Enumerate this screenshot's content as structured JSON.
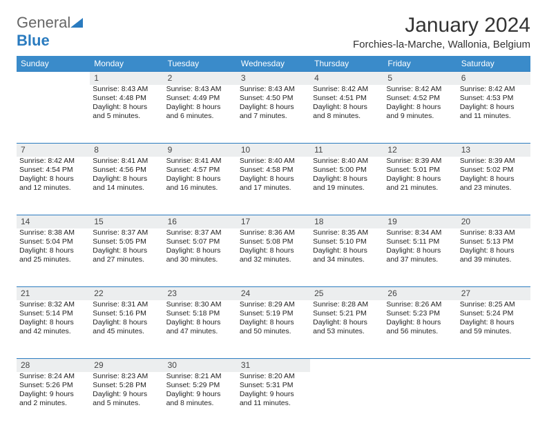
{
  "logo": {
    "line1": "General",
    "line2": "Blue"
  },
  "title": "January 2024",
  "location": "Forchies-la-Marche, Wallonia, Belgium",
  "colors": {
    "header_bg": "#3a8bca",
    "header_text": "#ffffff",
    "daynum_bg": "#eceeef",
    "border": "#2a7bbf",
    "text": "#222222"
  },
  "weekdays": [
    "Sunday",
    "Monday",
    "Tuesday",
    "Wednesday",
    "Thursday",
    "Friday",
    "Saturday"
  ],
  "weeks": [
    {
      "nums": [
        "",
        "1",
        "2",
        "3",
        "4",
        "5",
        "6"
      ],
      "cells": [
        "",
        "Sunrise: 8:43 AM\nSunset: 4:48 PM\nDaylight: 8 hours and 5 minutes.",
        "Sunrise: 8:43 AM\nSunset: 4:49 PM\nDaylight: 8 hours and 6 minutes.",
        "Sunrise: 8:43 AM\nSunset: 4:50 PM\nDaylight: 8 hours and 7 minutes.",
        "Sunrise: 8:42 AM\nSunset: 4:51 PM\nDaylight: 8 hours and 8 minutes.",
        "Sunrise: 8:42 AM\nSunset: 4:52 PM\nDaylight: 8 hours and 9 minutes.",
        "Sunrise: 8:42 AM\nSunset: 4:53 PM\nDaylight: 8 hours and 11 minutes."
      ]
    },
    {
      "nums": [
        "7",
        "8",
        "9",
        "10",
        "11",
        "12",
        "13"
      ],
      "cells": [
        "Sunrise: 8:42 AM\nSunset: 4:54 PM\nDaylight: 8 hours and 12 minutes.",
        "Sunrise: 8:41 AM\nSunset: 4:56 PM\nDaylight: 8 hours and 14 minutes.",
        "Sunrise: 8:41 AM\nSunset: 4:57 PM\nDaylight: 8 hours and 16 minutes.",
        "Sunrise: 8:40 AM\nSunset: 4:58 PM\nDaylight: 8 hours and 17 minutes.",
        "Sunrise: 8:40 AM\nSunset: 5:00 PM\nDaylight: 8 hours and 19 minutes.",
        "Sunrise: 8:39 AM\nSunset: 5:01 PM\nDaylight: 8 hours and 21 minutes.",
        "Sunrise: 8:39 AM\nSunset: 5:02 PM\nDaylight: 8 hours and 23 minutes."
      ]
    },
    {
      "nums": [
        "14",
        "15",
        "16",
        "17",
        "18",
        "19",
        "20"
      ],
      "cells": [
        "Sunrise: 8:38 AM\nSunset: 5:04 PM\nDaylight: 8 hours and 25 minutes.",
        "Sunrise: 8:37 AM\nSunset: 5:05 PM\nDaylight: 8 hours and 27 minutes.",
        "Sunrise: 8:37 AM\nSunset: 5:07 PM\nDaylight: 8 hours and 30 minutes.",
        "Sunrise: 8:36 AM\nSunset: 5:08 PM\nDaylight: 8 hours and 32 minutes.",
        "Sunrise: 8:35 AM\nSunset: 5:10 PM\nDaylight: 8 hours and 34 minutes.",
        "Sunrise: 8:34 AM\nSunset: 5:11 PM\nDaylight: 8 hours and 37 minutes.",
        "Sunrise: 8:33 AM\nSunset: 5:13 PM\nDaylight: 8 hours and 39 minutes."
      ]
    },
    {
      "nums": [
        "21",
        "22",
        "23",
        "24",
        "25",
        "26",
        "27"
      ],
      "cells": [
        "Sunrise: 8:32 AM\nSunset: 5:14 PM\nDaylight: 8 hours and 42 minutes.",
        "Sunrise: 8:31 AM\nSunset: 5:16 PM\nDaylight: 8 hours and 45 minutes.",
        "Sunrise: 8:30 AM\nSunset: 5:18 PM\nDaylight: 8 hours and 47 minutes.",
        "Sunrise: 8:29 AM\nSunset: 5:19 PM\nDaylight: 8 hours and 50 minutes.",
        "Sunrise: 8:28 AM\nSunset: 5:21 PM\nDaylight: 8 hours and 53 minutes.",
        "Sunrise: 8:26 AM\nSunset: 5:23 PM\nDaylight: 8 hours and 56 minutes.",
        "Sunrise: 8:25 AM\nSunset: 5:24 PM\nDaylight: 8 hours and 59 minutes."
      ]
    },
    {
      "nums": [
        "28",
        "29",
        "30",
        "31",
        "",
        "",
        ""
      ],
      "cells": [
        "Sunrise: 8:24 AM\nSunset: 5:26 PM\nDaylight: 9 hours and 2 minutes.",
        "Sunrise: 8:23 AM\nSunset: 5:28 PM\nDaylight: 9 hours and 5 minutes.",
        "Sunrise: 8:21 AM\nSunset: 5:29 PM\nDaylight: 9 hours and 8 minutes.",
        "Sunrise: 8:20 AM\nSunset: 5:31 PM\nDaylight: 9 hours and 11 minutes.",
        "",
        "",
        ""
      ]
    }
  ]
}
